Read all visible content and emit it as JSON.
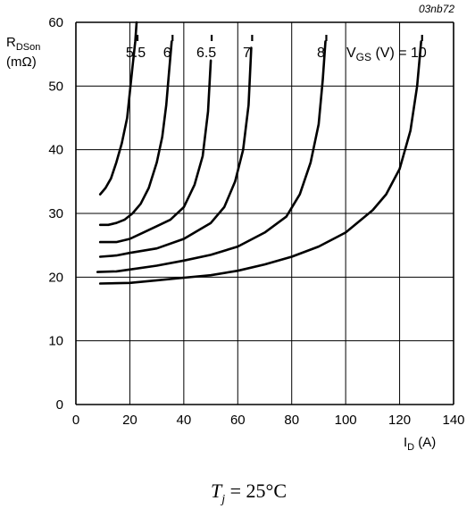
{
  "chart_data": {
    "type": "line",
    "figure_id": "03nb72",
    "ylabel": {
      "main": "R",
      "sub": "DSon",
      "unit": "(mΩ)"
    },
    "xlabel": {
      "main": "I",
      "sub": "D",
      "unit": " (A)"
    },
    "xlim": [
      0,
      140
    ],
    "ylim": [
      0,
      60
    ],
    "xticks": [
      0,
      20,
      40,
      60,
      80,
      100,
      120,
      140
    ],
    "yticks": [
      0,
      10,
      20,
      30,
      40,
      50,
      60
    ],
    "grid": true,
    "legend_prefix": {
      "main": "V",
      "sub": "GS",
      "tail": " (V) = "
    },
    "series": [
      {
        "name": "5.5",
        "x": [
          9,
          11,
          13,
          15,
          17,
          19,
          20,
          21,
          22,
          22.5
        ],
        "y": [
          33,
          34,
          35.5,
          38,
          41,
          45,
          49,
          53,
          57,
          60
        ]
      },
      {
        "name": "6",
        "x": [
          9,
          12,
          15,
          18,
          21,
          24,
          27,
          30,
          32,
          33.5,
          34.5,
          35.5
        ],
        "y": [
          28.2,
          28.2,
          28.5,
          29,
          30,
          31.5,
          34,
          38,
          42,
          47,
          52,
          57
        ]
      },
      {
        "name": "6.5",
        "x": [
          9,
          15,
          20,
          25,
          30,
          35,
          40,
          44,
          47,
          49,
          50
        ],
        "y": [
          25.5,
          25.5,
          26,
          27,
          28,
          29,
          31,
          34.5,
          39,
          46,
          54
        ]
      },
      {
        "name": "7",
        "x": [
          9,
          15,
          20,
          30,
          40,
          50,
          55,
          59,
          62,
          64,
          65
        ],
        "y": [
          23.2,
          23.4,
          23.8,
          24.5,
          26,
          28.5,
          31,
          35,
          40,
          47,
          56
        ]
      },
      {
        "name": "8",
        "x": [
          8,
          15,
          20,
          30,
          40,
          50,
          60,
          70,
          78,
          83,
          87,
          90,
          91.5,
          92.5
        ],
        "y": [
          20.8,
          20.9,
          21.2,
          21.8,
          22.6,
          23.5,
          24.8,
          27,
          29.5,
          33,
          38,
          44,
          51,
          57
        ]
      },
      {
        "name": "10",
        "x": [
          9,
          20,
          30,
          40,
          50,
          60,
          70,
          80,
          90,
          100,
          110,
          115,
          120,
          124,
          126.5,
          128
        ],
        "y": [
          19,
          19.1,
          19.5,
          19.9,
          20.3,
          21,
          22,
          23.2,
          24.8,
          27,
          30.5,
          33,
          37,
          43,
          50,
          57
        ]
      }
    ],
    "annotation": {
      "main": "T",
      "sub": "j",
      "rest": " = 25°C"
    }
  }
}
